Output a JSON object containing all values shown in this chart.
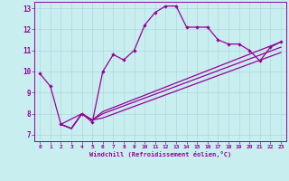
{
  "xlabel": "Windchill (Refroidissement éolien,°C)",
  "xlim": [
    -0.5,
    23.5
  ],
  "ylim": [
    6.7,
    13.3
  ],
  "xticks": [
    0,
    1,
    2,
    3,
    4,
    5,
    6,
    7,
    8,
    9,
    10,
    11,
    12,
    13,
    14,
    15,
    16,
    17,
    18,
    19,
    20,
    21,
    22,
    23
  ],
  "yticks": [
    7,
    8,
    9,
    10,
    11,
    12,
    13
  ],
  "bg_color": "#c8eef0",
  "line_color": "#990099",
  "grid_color": "#b0d8dc",
  "main_line": {
    "x": [
      0,
      1,
      2,
      4,
      5,
      6,
      7,
      8,
      9,
      10,
      11,
      12,
      13,
      14,
      15,
      16,
      17,
      18,
      19,
      20,
      21,
      22,
      23
    ],
    "y": [
      9.9,
      9.3,
      7.5,
      8.0,
      7.6,
      10.0,
      10.8,
      10.55,
      11.0,
      12.2,
      12.8,
      13.1,
      13.1,
      12.1,
      12.1,
      12.1,
      11.5,
      11.3,
      11.3,
      11.0,
      10.5,
      11.15,
      11.4
    ]
  },
  "diag_lines": [
    {
      "x": [
        2,
        3,
        4,
        5,
        6,
        23
      ],
      "y": [
        7.5,
        7.3,
        8.0,
        7.7,
        8.1,
        11.4
      ]
    },
    {
      "x": [
        2,
        3,
        4,
        5,
        6,
        23
      ],
      "y": [
        7.5,
        7.3,
        8.0,
        7.7,
        8.0,
        11.15
      ]
    },
    {
      "x": [
        2,
        3,
        4,
        5,
        6,
        23
      ],
      "y": [
        7.5,
        7.3,
        8.0,
        7.7,
        7.8,
        10.9
      ]
    }
  ]
}
